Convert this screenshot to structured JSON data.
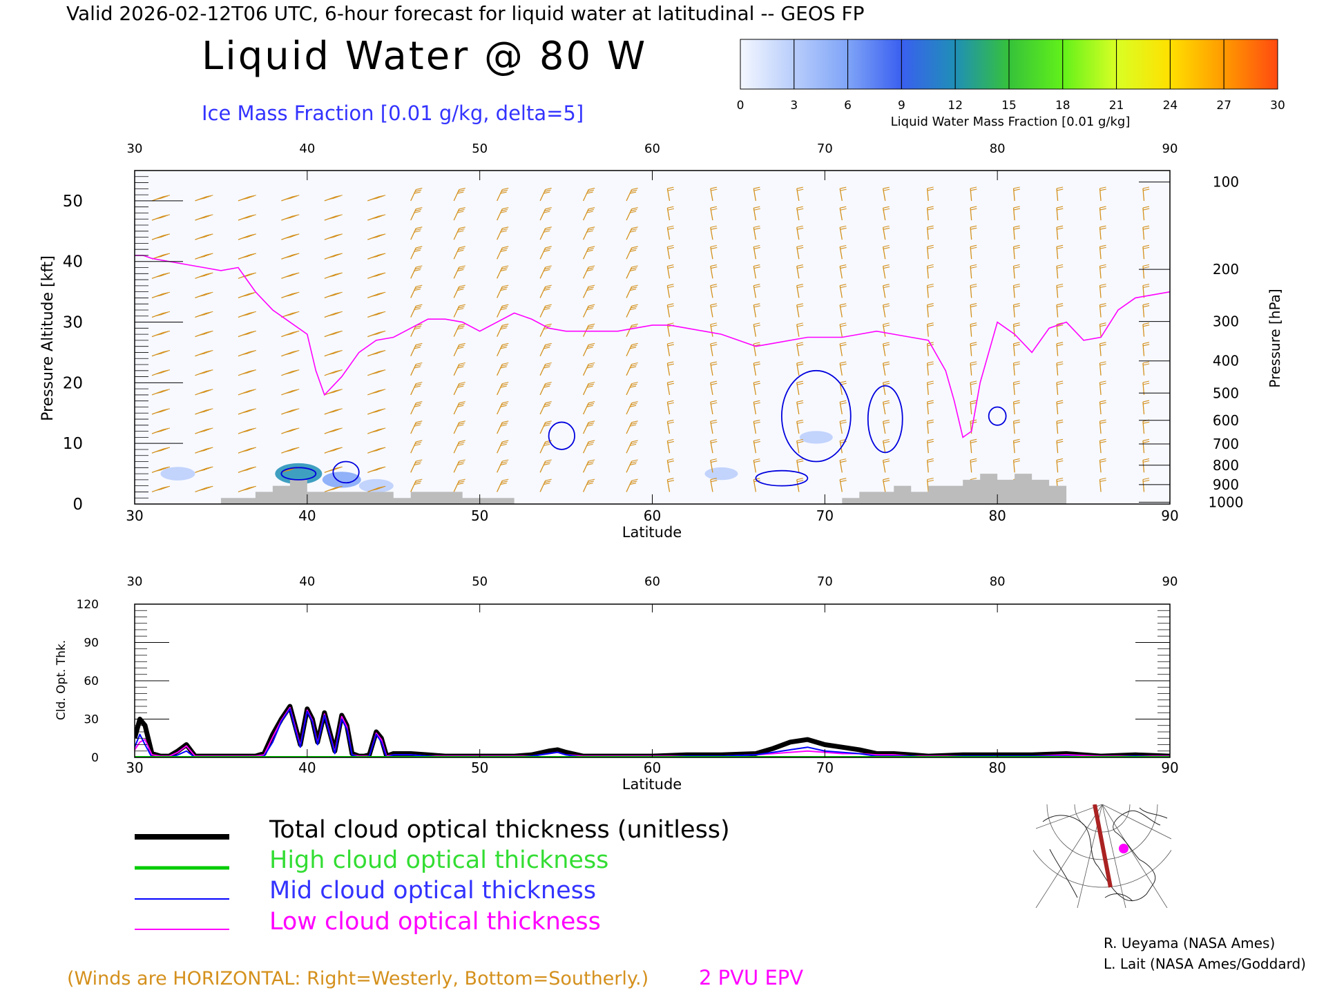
{
  "header": {
    "valid_line": "Valid 2026-02-12T06 UTC, 6-hour forecast for liquid water at latitudinal -- GEOS FP",
    "main_title": "Liquid Water @ 80 W",
    "subtitle": "Ice Mass Fraction [0.01 g/kg, delta=5]",
    "colors": {
      "subtitle": "#3333ff",
      "text": "#000000"
    }
  },
  "colorbar": {
    "ticks": [
      "0",
      "3",
      "6",
      "9",
      "12",
      "15",
      "18",
      "21",
      "24",
      "27",
      "30"
    ],
    "label": "Liquid Water Mass Fraction [0.01 g/kg]",
    "colors": [
      "#f4f7ff",
      "#b8cdfb",
      "#7fa4f7",
      "#3a5ff0",
      "#1f8fb6",
      "#36c23a",
      "#62f11a",
      "#d9ff24",
      "#ffe000",
      "#ff9a00",
      "#ff4a10"
    ]
  },
  "chart_data": [
    {
      "type": "heatmap",
      "title": "Liquid Water @ 80 W",
      "xlabel": "Latitude",
      "ylabel": "Pressure Altitude [kft]",
      "y2label": "Pressure [hPa]",
      "xlim": [
        30,
        90
      ],
      "ylim": [
        0,
        55
      ],
      "x_ticks_bottom": [
        "30",
        "40",
        "50",
        "60",
        "70",
        "80",
        "90"
      ],
      "x_ticks_top": [
        "30",
        "40",
        "50",
        "60",
        "70",
        "80",
        "90"
      ],
      "y_ticks": [
        "0",
        "10",
        "20",
        "30",
        "40",
        "50"
      ],
      "y2_ticks": [
        {
          "label": "100",
          "kft": 53.1
        },
        {
          "label": "200",
          "kft": 38.7
        },
        {
          "label": "300",
          "kft": 30.1
        },
        {
          "label": "400",
          "kft": 23.6
        },
        {
          "label": "500",
          "kft": 18.3
        },
        {
          "label": "600",
          "kft": 13.8
        },
        {
          "label": "700",
          "kft": 9.9
        },
        {
          "label": "800",
          "kft": 6.4
        },
        {
          "label": "900",
          "kft": 3.2
        },
        {
          "label": "1000",
          "kft": 0.3
        }
      ],
      "epv_2pvu_line": {
        "name": "2 PVU EPV",
        "color": "#ff00ff",
        "x": [
          30,
          30.5,
          31,
          32,
          33,
          34,
          35,
          36,
          37,
          38,
          39,
          40,
          40.5,
          41,
          42,
          43,
          44,
          45,
          46,
          47,
          48,
          49,
          50,
          51,
          52,
          53,
          54,
          55,
          56,
          57,
          58,
          59,
          60,
          61,
          62,
          63,
          64,
          65,
          66,
          67,
          68,
          69,
          70,
          71,
          72,
          73,
          74,
          75,
          76,
          77,
          77.5,
          78,
          78.5,
          79,
          80,
          81,
          82,
          83,
          84,
          85,
          86,
          87,
          88,
          89,
          90
        ],
        "y": [
          41,
          41,
          40.5,
          40,
          39.5,
          39,
          38.5,
          39,
          35,
          32,
          30,
          28,
          22,
          18,
          21,
          25,
          27,
          27.5,
          29,
          30.5,
          30.5,
          30,
          28.5,
          30,
          31.5,
          30.5,
          29,
          28.5,
          28.5,
          28.5,
          28.5,
          29,
          29.5,
          29.5,
          29,
          28.5,
          28,
          27,
          26,
          26.5,
          27,
          27.5,
          27.5,
          27.5,
          28,
          28.5,
          28,
          27.5,
          27,
          22,
          17,
          11,
          12,
          20,
          30,
          28,
          25,
          29,
          30,
          27,
          27.5,
          32,
          34,
          34.5,
          35
        ]
      },
      "ice_contour_5": [
        {
          "lat_range": [
            38.5,
            40.5
          ],
          "kft_range": [
            4,
            6
          ]
        },
        {
          "lat_range": [
            41.5,
            43
          ],
          "kft_range": [
            3.5,
            7
          ]
        },
        {
          "lat_range": [
            54,
            55.5
          ],
          "kft_range": [
            9,
            13.5
          ]
        },
        {
          "lat_range": [
            67.5,
            71.5
          ],
          "kft_range": [
            7,
            22
          ]
        },
        {
          "lat_range": [
            72.5,
            74.5
          ],
          "kft_range": [
            8.5,
            19.5
          ]
        },
        {
          "lat_range": [
            79.5,
            80.5
          ],
          "kft_range": [
            13,
            16
          ]
        },
        {
          "lat_range": [
            66,
            69
          ],
          "kft_range": [
            3,
            5.5
          ]
        }
      ],
      "liquid_water_patches": [
        {
          "lat": 39.5,
          "kft": 5,
          "value": 12
        },
        {
          "lat": 42,
          "kft": 4,
          "value": 6
        },
        {
          "lat": 44,
          "kft": 3,
          "value": 3
        },
        {
          "lat": 32.5,
          "kft": 5,
          "value": 3
        },
        {
          "lat": 69.5,
          "kft": 11,
          "value": 2
        },
        {
          "lat": 64,
          "kft": 5,
          "value": 2
        }
      ],
      "terrain_kft": {
        "x": [
          30,
          34,
          35,
          37,
          38,
          39,
          40,
          42,
          44,
          45,
          46,
          47,
          49,
          50,
          51,
          52,
          70,
          71,
          72,
          73,
          74,
          75,
          76,
          77,
          78,
          79,
          80,
          81,
          82,
          83,
          84,
          90
        ],
        "y": [
          0,
          0,
          1,
          2,
          3,
          4,
          2,
          2,
          2,
          1,
          2,
          2,
          1,
          1,
          1,
          0,
          0,
          1,
          2,
          2,
          3,
          2,
          3,
          3,
          4,
          5,
          4,
          5,
          4,
          3,
          0,
          0
        ]
      },
      "wind_barbs": "present",
      "wind_note": "(Winds are HORIZONTAL: Right=Westerly, Bottom=Southerly.)",
      "wind_color": "#d4901c",
      "grid": false
    },
    {
      "type": "line",
      "xlabel": "Latitude",
      "ylabel": "Cld. Opt. Thk.",
      "xlim": [
        30,
        90
      ],
      "ylim": [
        0,
        120
      ],
      "x_ticks_bottom": [
        "30",
        "40",
        "50",
        "60",
        "70",
        "80",
        "90"
      ],
      "x_ticks_top": [
        "30",
        "40",
        "50",
        "60",
        "70",
        "80",
        "90"
      ],
      "y_ticks": [
        "0",
        "30",
        "60",
        "90",
        "120"
      ],
      "x": [
        30,
        30.3,
        30.6,
        31,
        31.5,
        32,
        32.5,
        33,
        33.5,
        34,
        35,
        36,
        37,
        37.5,
        38,
        38.5,
        39,
        39.3,
        39.6,
        40,
        40.3,
        40.6,
        41,
        41.3,
        41.6,
        42,
        42.3,
        42.6,
        43,
        43.3,
        43.6,
        44,
        44.3,
        44.6,
        45,
        46,
        47,
        48,
        50,
        52,
        53,
        54,
        54.5,
        55,
        56,
        58,
        60,
        62,
        64,
        66,
        67,
        68,
        69,
        70,
        71,
        72,
        73,
        74,
        75,
        76,
        78,
        80,
        82,
        84,
        86,
        88,
        90
      ],
      "series": [
        {
          "name": "Total cloud optical thickness (unitless)",
          "color": "#000000",
          "values": [
            15,
            30,
            25,
            3,
            1,
            1,
            5,
            10,
            1,
            1,
            1,
            1,
            1,
            3,
            18,
            30,
            40,
            25,
            10,
            38,
            30,
            12,
            35,
            20,
            5,
            33,
            25,
            3,
            1,
            1,
            2,
            20,
            15,
            1,
            3,
            3,
            2,
            1,
            1,
            1,
            2,
            5,
            6,
            4,
            1,
            1,
            1,
            2,
            2,
            3,
            7,
            12,
            14,
            10,
            8,
            6,
            3,
            3,
            2,
            1,
            2,
            2,
            2,
            3,
            1,
            2,
            1
          ]
        },
        {
          "name": "High cloud optical thickness",
          "color": "#00cc00",
          "values": [
            0,
            0,
            0,
            0,
            0,
            0,
            0,
            0,
            0,
            0,
            0,
            0,
            0,
            0,
            0,
            0,
            0,
            0,
            0,
            0,
            0,
            0,
            0,
            0,
            0,
            0,
            0,
            0,
            0,
            0,
            0,
            0,
            0,
            0,
            0,
            0,
            0,
            0,
            0,
            0,
            0,
            0,
            0,
            0,
            0,
            0,
            0,
            0,
            0,
            0,
            0,
            0,
            0,
            0,
            0,
            0,
            0,
            0,
            0,
            0,
            0,
            0,
            0,
            0,
            0,
            0,
            0
          ]
        },
        {
          "name": "Mid cloud optical thickness",
          "color": "#0000ff",
          "values": [
            8,
            18,
            10,
            0,
            0,
            0,
            2,
            5,
            0,
            0,
            0,
            0,
            0,
            1,
            12,
            28,
            38,
            22,
            8,
            36,
            28,
            10,
            33,
            18,
            3,
            30,
            22,
            2,
            0,
            0,
            1,
            18,
            12,
            0,
            2,
            2,
            1,
            0,
            0,
            0,
            1,
            3,
            4,
            2,
            0,
            0,
            0,
            1,
            1,
            2,
            4,
            6,
            8,
            5,
            4,
            3,
            1,
            1,
            1,
            0,
            1,
            1,
            1,
            1,
            0,
            1,
            0
          ]
        },
        {
          "name": "Low cloud optical thickness",
          "color": "#ff00ff",
          "values": [
            6,
            12,
            14,
            2,
            1,
            1,
            4,
            9,
            1,
            1,
            1,
            1,
            1,
            2,
            16,
            29,
            39,
            24,
            9,
            37,
            29,
            11,
            34,
            19,
            4,
            32,
            24,
            2,
            1,
            1,
            1,
            19,
            14,
            1,
            2,
            2,
            1,
            1,
            1,
            1,
            1,
            3,
            4,
            2,
            1,
            1,
            1,
            1,
            1,
            2,
            3,
            4,
            5,
            4,
            3,
            3,
            2,
            2,
            1,
            1,
            1,
            1,
            1,
            2,
            1,
            1,
            1
          ]
        }
      ]
    }
  ],
  "legend": {
    "items": [
      {
        "label": "Total cloud optical thickness (unitless)",
        "color": "#000000",
        "text_color": "#000000"
      },
      {
        "label": "High cloud optical thickness",
        "color": "#00cc00",
        "text_color": "#00cc00"
      },
      {
        "label": "Mid cloud optical thickness",
        "color": "#0000ff",
        "text_color": "#3333ff"
      },
      {
        "label": "Low cloud optical thickness",
        "color": "#ff00ff",
        "text_color": "#ff00ff"
      }
    ]
  },
  "footer": {
    "wind_note": "(Winds are HORIZONTAL: Right=Westerly, Bottom=Southerly.)",
    "epv_label": "2 PVU EPV",
    "credit_1": "R. Ueyama (NASA Ames)",
    "credit_2": "L. Lait (NASA Ames/Goddard)",
    "colors": {
      "wind": "#d4901c",
      "epv": "#ff00ff"
    }
  },
  "inset_map": {
    "marker_color": "#ff00ff",
    "track_color": "#aa2222"
  }
}
